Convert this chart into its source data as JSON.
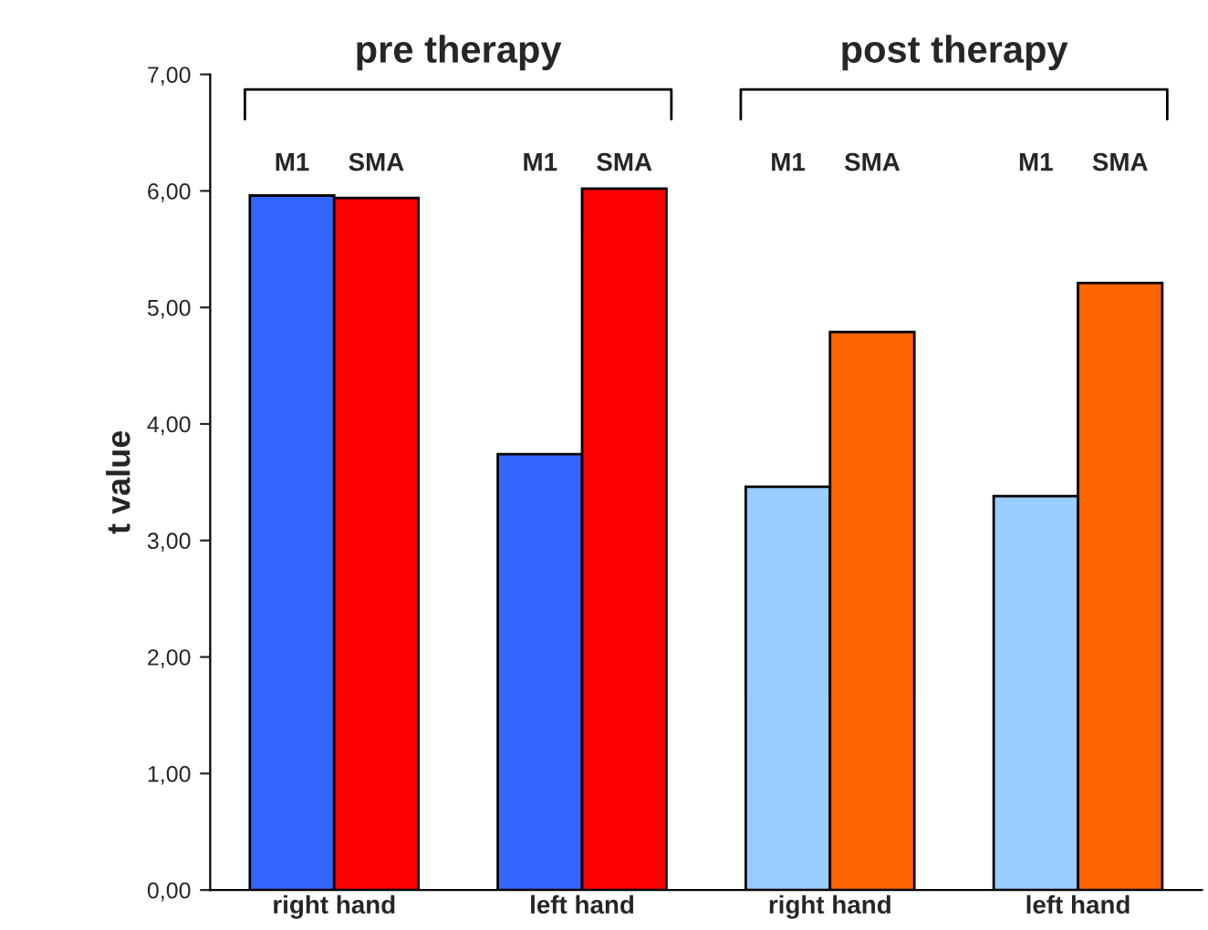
{
  "chart_data": {
    "type": "bar",
    "ylabel": "t value",
    "categories": [
      "right hand",
      "left hand",
      "right hand",
      "left hand"
    ],
    "series": [
      {
        "name": "M1",
        "colors": [
          "#3366ff",
          "#3366ff",
          "#99ccff",
          "#99ccff"
        ],
        "values": [
          5.96,
          3.74,
          3.46,
          3.38
        ]
      },
      {
        "name": "SMA",
        "colors": [
          "#ff0000",
          "#ff0000",
          "#ff6600",
          "#ff6600"
        ],
        "values": [
          5.94,
          6.02,
          4.79,
          5.21
        ]
      }
    ],
    "annotations": [
      "pre therapy",
      "post therapy"
    ],
    "ylim": [
      0,
      7
    ],
    "yticks": [
      {
        "value": 0,
        "label": "0,00"
      },
      {
        "value": 1,
        "label": "1,00"
      },
      {
        "value": 2,
        "label": "2,00"
      },
      {
        "value": 3,
        "label": "3,00"
      },
      {
        "value": 4,
        "label": "4,00"
      },
      {
        "value": 5,
        "label": "5,00"
      },
      {
        "value": 6,
        "label": "6,00"
      },
      {
        "value": 7,
        "label": "7,00"
      }
    ],
    "grid": false,
    "legend": false
  }
}
